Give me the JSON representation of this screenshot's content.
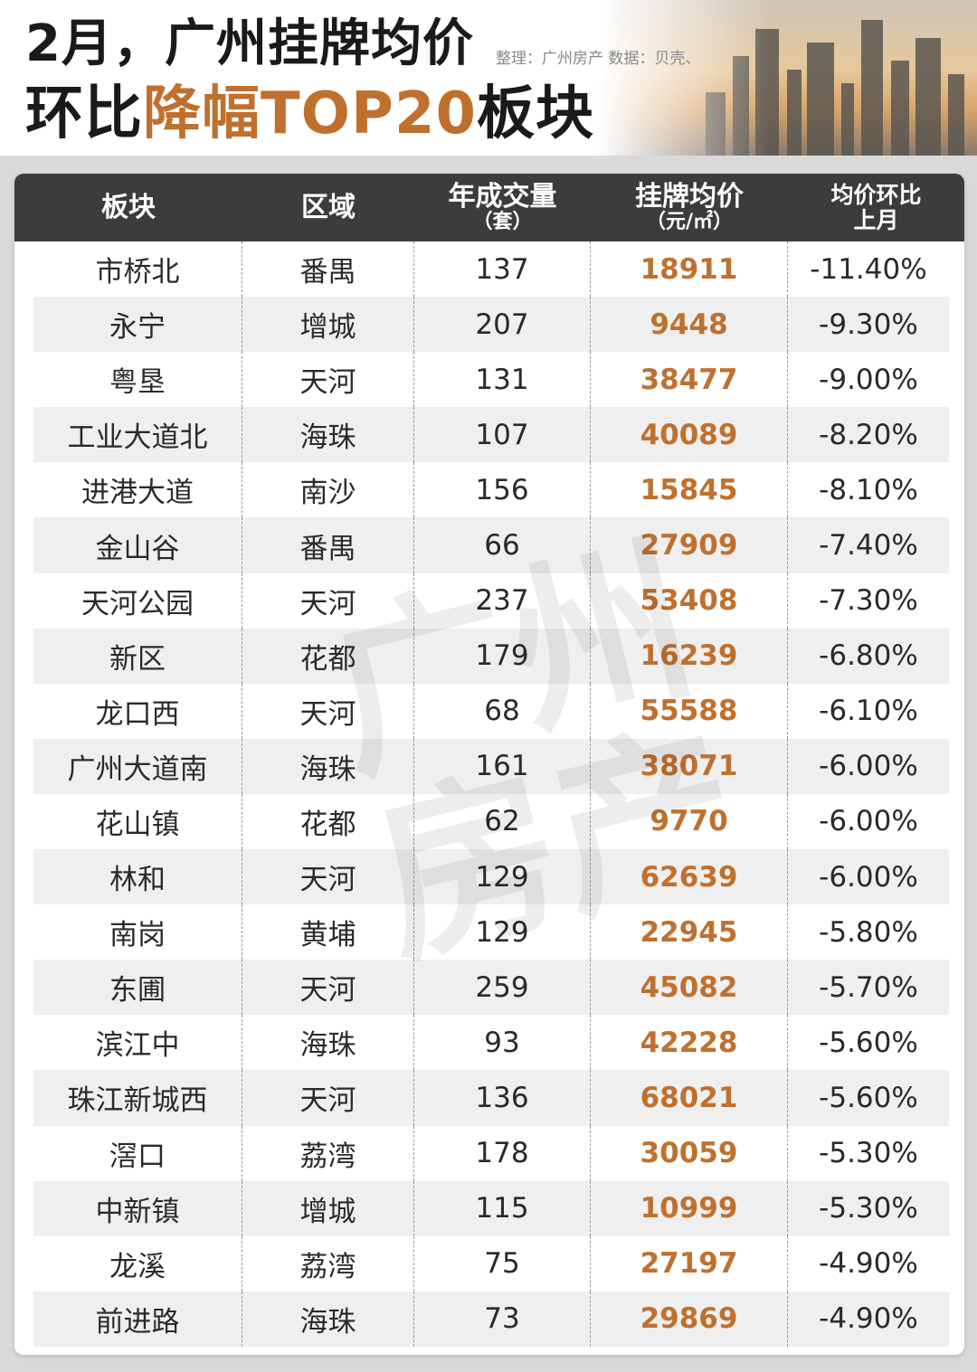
{
  "header": {
    "title_line1": "2月，广州挂牌均价",
    "title_line2_prefix": "环比",
    "title_line2_highlight": "降幅TOP20",
    "title_line2_suffix": "板块",
    "credit": "整理：广州房产  数据：贝壳、"
  },
  "table": {
    "columns": {
      "block": "板块",
      "district": "区域",
      "volume_main": "年成交量",
      "volume_unit": "（套）",
      "price_main": "挂牌均价",
      "price_unit": "（元/㎡）",
      "change_line1": "均价环比",
      "change_line2": "上月"
    },
    "rows": [
      {
        "block": "市桥北",
        "district": "番禺",
        "volume": "137",
        "price": "18911",
        "change": "-11.40%"
      },
      {
        "block": "永宁",
        "district": "增城",
        "volume": "207",
        "price": "9448",
        "change": "-9.30%"
      },
      {
        "block": "粤垦",
        "district": "天河",
        "volume": "131",
        "price": "38477",
        "change": "-9.00%"
      },
      {
        "block": "工业大道北",
        "district": "海珠",
        "volume": "107",
        "price": "40089",
        "change": "-8.20%"
      },
      {
        "block": "进港大道",
        "district": "南沙",
        "volume": "156",
        "price": "15845",
        "change": "-8.10%"
      },
      {
        "block": "金山谷",
        "district": "番禺",
        "volume": "66",
        "price": "27909",
        "change": "-7.40%"
      },
      {
        "block": "天河公园",
        "district": "天河",
        "volume": "237",
        "price": "53408",
        "change": "-7.30%"
      },
      {
        "block": "新区",
        "district": "花都",
        "volume": "179",
        "price": "16239",
        "change": "-6.80%"
      },
      {
        "block": "龙口西",
        "district": "天河",
        "volume": "68",
        "price": "55588",
        "change": "-6.10%"
      },
      {
        "block": "广州大道南",
        "district": "海珠",
        "volume": "161",
        "price": "38071",
        "change": "-6.00%"
      },
      {
        "block": "花山镇",
        "district": "花都",
        "volume": "62",
        "price": "9770",
        "change": "-6.00%"
      },
      {
        "block": "林和",
        "district": "天河",
        "volume": "129",
        "price": "62639",
        "change": "-6.00%"
      },
      {
        "block": "南岗",
        "district": "黄埔",
        "volume": "129",
        "price": "22945",
        "change": "-5.80%"
      },
      {
        "block": "东圃",
        "district": "天河",
        "volume": "259",
        "price": "45082",
        "change": "-5.70%"
      },
      {
        "block": "滨江中",
        "district": "海珠",
        "volume": "93",
        "price": "42228",
        "change": "-5.60%"
      },
      {
        "block": "珠江新城西",
        "district": "天河",
        "volume": "136",
        "price": "68021",
        "change": "-5.60%"
      },
      {
        "block": "滘口",
        "district": "荔湾",
        "volume": "178",
        "price": "30059",
        "change": "-5.30%"
      },
      {
        "block": "中新镇",
        "district": "增城",
        "volume": "115",
        "price": "10999",
        "change": "-5.30%"
      },
      {
        "block": "龙溪",
        "district": "荔湾",
        "volume": "75",
        "price": "27197",
        "change": "-4.90%"
      },
      {
        "block": "前进路",
        "district": "海珠",
        "volume": "73",
        "price": "29869",
        "change": "-4.90%"
      }
    ]
  },
  "watermark": "广州房产",
  "colors": {
    "accent": "#c0702e",
    "header_bg": "#3c3c3c",
    "alt_row": "#efefef"
  }
}
